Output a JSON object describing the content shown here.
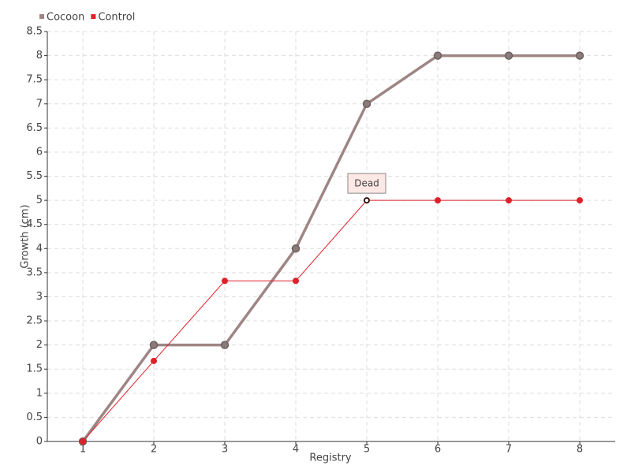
{
  "chart_data": {
    "type": "line",
    "x_label": "Registry",
    "y_label": "Growth (cm)",
    "x": [
      1,
      2,
      3,
      4,
      5,
      6,
      7,
      8
    ],
    "series": [
      {
        "name": "Cocoon",
        "color": "#9e8585",
        "values": [
          0,
          2,
          2,
          4,
          7,
          8,
          8,
          8
        ]
      },
      {
        "name": "Control",
        "color": "#e0202a",
        "values": [
          0,
          1.67,
          3.33,
          3.33,
          5,
          5,
          5,
          5
        ]
      }
    ],
    "annotations": [
      {
        "text": "Dead",
        "x": 5,
        "y": 5
      }
    ],
    "xlim": [
      0.5,
      8.5
    ],
    "xticks": [
      1,
      2,
      3,
      4,
      5,
      6,
      7,
      8
    ],
    "ylim": [
      0,
      8.5
    ],
    "yticks": [
      0,
      0.5,
      1,
      1.5,
      2,
      2.5,
      3,
      3.5,
      4,
      4.5,
      5,
      5.5,
      6,
      6.5,
      7,
      7.5,
      8,
      8.5
    ],
    "grid": true,
    "legend": "top-left"
  }
}
